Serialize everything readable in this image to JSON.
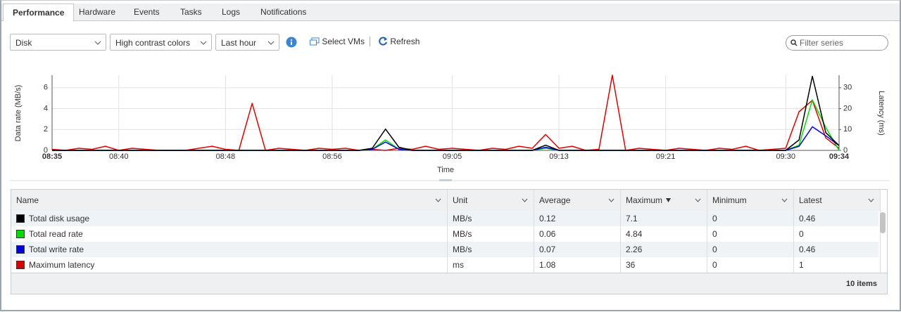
{
  "tabs": [
    "Performance",
    "Hardware",
    "Events",
    "Tasks",
    "Logs",
    "Notifications"
  ],
  "toolbar": {
    "metric": "Disk",
    "colors": "High contrast colors",
    "range": "Last hour",
    "select_vms": "Select VMs",
    "refresh": "Refresh",
    "filter_placeholder": "Filter series"
  },
  "chart_data": {
    "type": "line",
    "xlabel": "Time",
    "ylabel": "Data rate (MB/s)",
    "y2label": "Latency (ms)",
    "x": [
      "08:35",
      "08:36",
      "08:37",
      "08:38",
      "08:39",
      "08:40",
      "08:41",
      "08:42",
      "08:43",
      "08:44",
      "08:45",
      "08:46",
      "08:47",
      "08:48",
      "08:49",
      "08:50",
      "08:51",
      "08:52",
      "08:53",
      "08:54",
      "08:55",
      "08:56",
      "08:57",
      "08:58",
      "08:59",
      "09:00",
      "09:01",
      "09:02",
      "09:03",
      "09:04",
      "09:05",
      "09:06",
      "09:07",
      "09:08",
      "09:09",
      "09:10",
      "09:11",
      "09:12",
      "09:13",
      "09:14",
      "09:15",
      "09:16",
      "09:17",
      "09:18",
      "09:19",
      "09:20",
      "09:21",
      "09:22",
      "09:23",
      "09:24",
      "09:25",
      "09:26",
      "09:27",
      "09:28",
      "09:29",
      "09:30",
      "09:31",
      "09:32",
      "09:33",
      "09:34"
    ],
    "xticks": [
      "08:35",
      "08:40",
      "08:48",
      "08:56",
      "09:05",
      "09:13",
      "09:21",
      "09:30",
      "09:34"
    ],
    "ylim": [
      0,
      7.2
    ],
    "yticks": [
      0,
      2,
      4,
      6
    ],
    "y2lim": [
      0,
      36
    ],
    "y2ticks": [
      0,
      10,
      20,
      30
    ],
    "grid": true,
    "series": [
      {
        "name": "Total disk usage",
        "color": "#000000",
        "values": [
          0,
          0,
          0,
          0,
          0,
          0,
          0,
          0,
          0,
          0,
          0,
          0,
          0,
          0,
          0,
          0,
          0,
          0,
          0,
          0,
          0,
          0,
          0,
          0,
          0.2,
          2.04,
          0.3,
          0,
          0,
          0,
          0,
          0,
          0,
          0,
          0,
          0,
          0,
          0.5,
          0,
          0,
          0,
          0,
          0,
          0,
          0,
          0,
          0,
          0,
          0,
          0,
          0,
          0,
          0,
          0,
          0,
          0,
          1.0,
          7.1,
          1.7,
          0.46
        ]
      },
      {
        "name": "Total read rate",
        "color": "#00dd00",
        "values": [
          0,
          0,
          0,
          0,
          0,
          0,
          0,
          0,
          0,
          0,
          0,
          0,
          0,
          0,
          0,
          0,
          0,
          0,
          0,
          0,
          0,
          0,
          0,
          0,
          0.1,
          1.0,
          0.1,
          0,
          0,
          0,
          0,
          0,
          0,
          0,
          0,
          0,
          0,
          0.2,
          0,
          0,
          0,
          0,
          0,
          0,
          0,
          0,
          0,
          0,
          0,
          0,
          0,
          0,
          0,
          0,
          0,
          0,
          0.5,
          4.84,
          2.2,
          0
        ]
      },
      {
        "name": "Total write rate",
        "color": "#0000dd",
        "values": [
          0,
          0,
          0,
          0,
          0,
          0,
          0,
          0,
          0,
          0,
          0,
          0,
          0,
          0,
          0,
          0,
          0,
          0,
          0,
          0,
          0,
          0,
          0,
          0,
          0.1,
          0.8,
          0.1,
          0,
          0,
          0,
          0,
          0,
          0,
          0,
          0,
          0,
          0,
          0.3,
          0,
          0,
          0,
          0,
          0,
          0,
          0,
          0,
          0,
          0,
          0,
          0,
          0,
          0,
          0,
          0,
          0,
          0,
          0.4,
          2.26,
          1.4,
          0.46
        ]
      },
      {
        "name": "Maximum latency",
        "color": "#dd0000",
        "axis": "y2",
        "values": [
          0.5,
          0,
          1,
          0.5,
          2,
          0,
          1,
          0.5,
          0,
          0,
          0,
          1,
          2,
          0.5,
          0,
          22.5,
          0,
          1,
          0.5,
          0,
          1,
          0.5,
          1,
          0,
          0.5,
          0,
          1,
          0.5,
          2,
          0.5,
          1,
          0.5,
          0,
          1,
          0.5,
          2,
          1,
          7.6,
          1,
          2,
          0,
          0.5,
          36,
          0,
          1,
          0.5,
          0,
          1,
          0.5,
          0,
          1,
          0.5,
          2,
          0,
          0.5,
          1,
          18.5,
          24,
          6,
          1
        ]
      }
    ]
  },
  "table": {
    "columns": [
      "Name",
      "Unit",
      "Average",
      "Maximum",
      "Minimum",
      "Latest"
    ],
    "rows": [
      {
        "unit": "MB/s",
        "average": 0.12,
        "maximum": 7.1,
        "minimum": 0,
        "latest": 0.46
      },
      {
        "unit": "MB/s",
        "average": 0.06,
        "maximum": 4.84,
        "minimum": 0,
        "latest": 0
      },
      {
        "unit": "MB/s",
        "average": 0.07,
        "maximum": 2.26,
        "minimum": 0,
        "latest": 0.46
      },
      {
        "unit": "ms",
        "average": 1.08,
        "maximum": 36,
        "minimum": 0,
        "latest": 1
      }
    ],
    "footer": "10 items"
  }
}
